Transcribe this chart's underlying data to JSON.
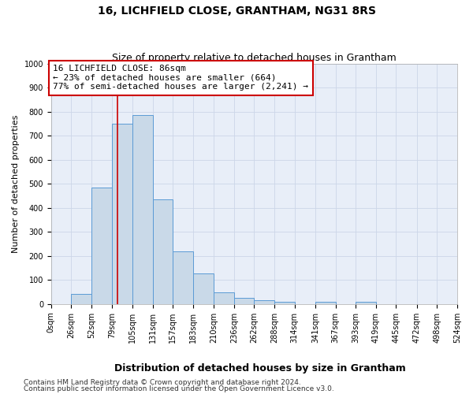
{
  "title": "16, LICHFIELD CLOSE, GRANTHAM, NG31 8RS",
  "subtitle": "Size of property relative to detached houses in Grantham",
  "xlabel": "Distribution of detached houses by size in Grantham",
  "ylabel": "Number of detached properties",
  "bin_edges": [
    0,
    26,
    52,
    79,
    105,
    131,
    157,
    183,
    210,
    236,
    262,
    288,
    314,
    341,
    367,
    393,
    419,
    445,
    472,
    498,
    524
  ],
  "bar_heights": [
    0,
    42,
    485,
    750,
    785,
    435,
    218,
    127,
    50,
    27,
    15,
    10,
    0,
    8,
    0,
    8,
    0,
    0,
    0,
    0
  ],
  "bar_color": "#c9d9e8",
  "bar_edge_color": "#5b9bd5",
  "property_size": 86,
  "red_line_color": "#cc0000",
  "annotation_text": "16 LICHFIELD CLOSE: 86sqm\n← 23% of detached houses are smaller (664)\n77% of semi-detached houses are larger (2,241) →",
  "annotation_box_color": "#ffffff",
  "annotation_box_edge": "#cc0000",
  "ylim": [
    0,
    1000
  ],
  "yticks": [
    0,
    100,
    200,
    300,
    400,
    500,
    600,
    700,
    800,
    900,
    1000
  ],
  "tick_labels": [
    "0sqm",
    "26sqm",
    "52sqm",
    "79sqm",
    "105sqm",
    "131sqm",
    "157sqm",
    "183sqm",
    "210sqm",
    "236sqm",
    "262sqm",
    "288sqm",
    "314sqm",
    "341sqm",
    "367sqm",
    "393sqm",
    "419sqm",
    "445sqm",
    "472sqm",
    "498sqm",
    "524sqm"
  ],
  "footer_line1": "Contains HM Land Registry data © Crown copyright and database right 2024.",
  "footer_line2": "Contains public sector information licensed under the Open Government Licence v3.0.",
  "grid_color": "#ccd6e8",
  "background_color": "#e8eef8",
  "title_fontsize": 10,
  "subtitle_fontsize": 9,
  "xlabel_fontsize": 9,
  "ylabel_fontsize": 8,
  "tick_fontsize": 7,
  "annotation_fontsize": 8,
  "footer_fontsize": 6.5
}
